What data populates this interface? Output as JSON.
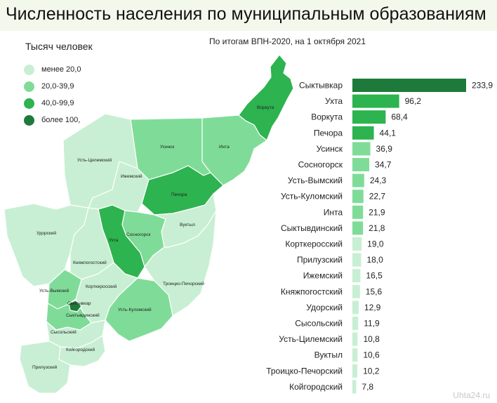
{
  "title": "Численность населения по муниципальным образованиям",
  "subtitle": "По итогам ВПН-2020, на 1 октября 2021",
  "legend": {
    "title": "Тысяч человек",
    "items": [
      {
        "label": "менее 20,0",
        "color": "#c8efd3"
      },
      {
        "label": "20,0-39,9",
        "color": "#7fdc98"
      },
      {
        "label": "40,0-99,9",
        "color": "#2db34f"
      },
      {
        "label": "более 100,",
        "color": "#1e7a3a"
      }
    ]
  },
  "map_labels": [
    "Воркута",
    "Усинск",
    "Инта",
    "Усть-Цилемский",
    "Ижемский",
    "Печора",
    "Удорский",
    "Ухта",
    "Сосногорск",
    "Вуктыл",
    "Княжпогостский",
    "Корткеросский",
    "Троицко-Печорский",
    "Усть-Вымский",
    "Сыктывкар",
    "Сыктывдинский",
    "Усть-Куломский",
    "Сысольский",
    "Койгородский",
    "Прилузский"
  ],
  "chart_data": {
    "type": "bar",
    "orientation": "horizontal",
    "categories": [
      "Сыктывкар",
      "Ухта",
      "Воркута",
      "Печора",
      "Усинск",
      "Сосногорск",
      "Усть-Вымский",
      "Усть-Куломский",
      "Инта",
      "Сыктывдинский",
      "Корткеросский",
      "Прилузский",
      "Ижемский",
      "Княжпогостский",
      "Удорский",
      "Сысольский",
      "Усть-Цилемский",
      "Вуктыл",
      "Троицко-Печорский",
      "Койгородский"
    ],
    "values": [
      233.9,
      96.2,
      68.4,
      44.1,
      36.9,
      34.7,
      24.3,
      22.7,
      21.9,
      21.8,
      19.0,
      18.0,
      16.5,
      15.6,
      12.9,
      11.9,
      10.8,
      10.6,
      10.2,
      7.8
    ],
    "value_labels": [
      "233,9",
      "96,2",
      "68,4",
      "44,1",
      "36,9",
      "34,7",
      "24,3",
      "22,7",
      "21,9",
      "21,8",
      "19,0",
      "18,0",
      "16,5",
      "15,6",
      "12,9",
      "11,9",
      "10,8",
      "10,6",
      "10,2",
      "7,8"
    ],
    "colors": [
      "#1e7a3a",
      "#2db34f",
      "#2db34f",
      "#2db34f",
      "#7fdc98",
      "#7fdc98",
      "#7fdc98",
      "#7fdc98",
      "#7fdc98",
      "#7fdc98",
      "#c8efd3",
      "#c8efd3",
      "#c8efd3",
      "#c8efd3",
      "#c8efd3",
      "#c8efd3",
      "#c8efd3",
      "#c8efd3",
      "#c8efd3",
      "#c8efd3"
    ],
    "xlim": [
      0,
      233.9
    ]
  },
  "watermark": "Uhta24.ru"
}
